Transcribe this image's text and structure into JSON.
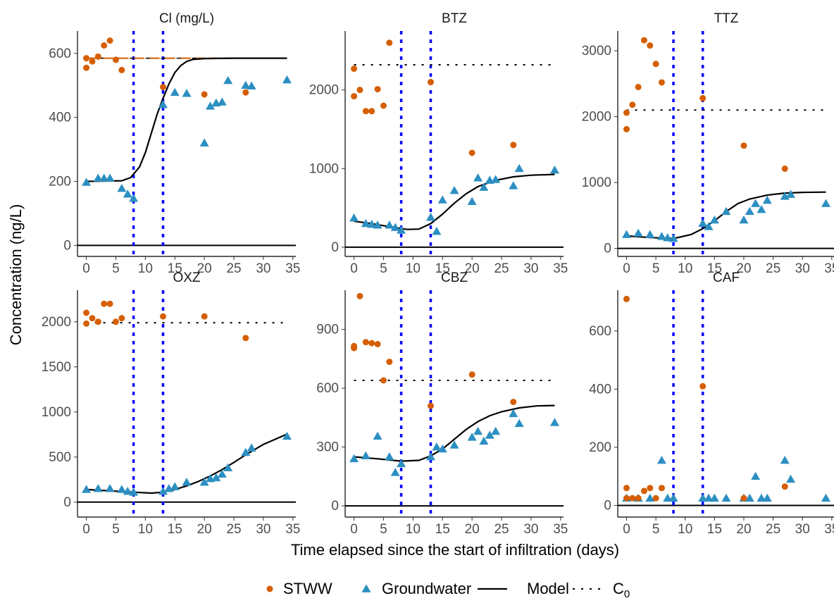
{
  "colors": {
    "stww": "#D55E00",
    "groundwater": "#2C8FC2",
    "model": "#000000",
    "vline": "#0000FF"
  },
  "chart_data": {
    "type": "scatter",
    "xlabel": "Time elapsed since the start of infiltration (days)",
    "ylabel": "Concentration (ng/L)",
    "x_ticks": [
      0,
      5,
      10,
      15,
      20,
      25,
      30,
      35
    ],
    "x_range": [
      -1.5,
      35.5
    ],
    "vertical_lines_x": [
      8,
      13
    ],
    "legend": {
      "position": "bottom",
      "items": [
        {
          "key": "stww",
          "label": "STWW",
          "symbol": "circle"
        },
        {
          "key": "groundwater",
          "label": "Groundwater",
          "symbol": "triangle"
        },
        {
          "key": "model",
          "label": "Model",
          "symbol": "line"
        },
        {
          "key": "c0",
          "label": "C",
          "sub": "0",
          "symbol": "dotted"
        }
      ]
    },
    "panels": [
      {
        "title": "Cl (mg/L)",
        "y_range": [
          -30,
          670
        ],
        "y_ticks": [
          0,
          200,
          400,
          600
        ],
        "c0": 585,
        "c0_style": "dashed",
        "stww": [
          [
            0,
            555
          ],
          [
            0,
            585
          ],
          [
            1,
            575
          ],
          [
            2,
            590
          ],
          [
            3,
            625
          ],
          [
            4,
            640
          ],
          [
            5,
            580
          ],
          [
            6,
            548
          ],
          [
            13,
            495
          ],
          [
            20,
            472
          ],
          [
            27,
            478
          ]
        ],
        "groundwater": [
          [
            0,
            197
          ],
          [
            2,
            210
          ],
          [
            3,
            210
          ],
          [
            4,
            210
          ],
          [
            6,
            178
          ],
          [
            7,
            160
          ],
          [
            8,
            147
          ],
          [
            13,
            440
          ],
          [
            15,
            478
          ],
          [
            17,
            475
          ],
          [
            20,
            320
          ],
          [
            21,
            435
          ],
          [
            22,
            445
          ],
          [
            23,
            448
          ],
          [
            24,
            515
          ],
          [
            27,
            500
          ],
          [
            28,
            498
          ],
          [
            34,
            517
          ]
        ],
        "model": [
          [
            0,
            200
          ],
          [
            6,
            202
          ],
          [
            7.5,
            212
          ],
          [
            9,
            245
          ],
          [
            10,
            290
          ],
          [
            11,
            350
          ],
          [
            12,
            410
          ],
          [
            13,
            460
          ],
          [
            14,
            505
          ],
          [
            15,
            540
          ],
          [
            16,
            562
          ],
          [
            17,
            575
          ],
          [
            18,
            581
          ],
          [
            20,
            584
          ],
          [
            25,
            585
          ],
          [
            34,
            585
          ]
        ]
      },
      {
        "title": "BTZ",
        "y_range": [
          -100,
          2750
        ],
        "y_ticks": [
          0,
          1000,
          2000
        ],
        "c0": 2320,
        "c0_style": "dotted",
        "stww": [
          [
            0,
            1920
          ],
          [
            0,
            2270
          ],
          [
            1,
            2000
          ],
          [
            2,
            1730
          ],
          [
            3,
            1730
          ],
          [
            4,
            2010
          ],
          [
            5,
            1800
          ],
          [
            6,
            2600
          ],
          [
            13,
            2100
          ],
          [
            20,
            1200
          ],
          [
            27,
            1300
          ]
        ],
        "groundwater": [
          [
            0,
            370
          ],
          [
            2,
            300
          ],
          [
            3,
            290
          ],
          [
            4,
            280
          ],
          [
            6,
            280
          ],
          [
            7,
            250
          ],
          [
            8,
            215
          ],
          [
            13,
            380
          ],
          [
            14,
            200
          ],
          [
            15,
            600
          ],
          [
            17,
            720
          ],
          [
            20,
            580
          ],
          [
            21,
            880
          ],
          [
            22,
            760
          ],
          [
            23,
            850
          ],
          [
            24,
            860
          ],
          [
            27,
            780
          ],
          [
            28,
            1000
          ],
          [
            34,
            980
          ]
        ],
        "model": [
          [
            0,
            330
          ],
          [
            3,
            300
          ],
          [
            6,
            260
          ],
          [
            9,
            225
          ],
          [
            11,
            230
          ],
          [
            13,
            300
          ],
          [
            15,
            420
          ],
          [
            17,
            560
          ],
          [
            19,
            680
          ],
          [
            21,
            770
          ],
          [
            24,
            850
          ],
          [
            27,
            895
          ],
          [
            30,
            915
          ],
          [
            34,
            925
          ]
        ]
      },
      {
        "title": "TTZ",
        "y_range": [
          -100,
          3300
        ],
        "y_ticks": [
          0,
          1000,
          2000,
          3000
        ],
        "c0": 2100,
        "c0_style": "dotted",
        "stww": [
          [
            0,
            1810
          ],
          [
            0,
            2060
          ],
          [
            1,
            2180
          ],
          [
            2,
            2450
          ],
          [
            3,
            3160
          ],
          [
            4,
            3080
          ],
          [
            5,
            2800
          ],
          [
            6,
            2520
          ],
          [
            13,
            2280
          ],
          [
            20,
            1560
          ],
          [
            27,
            1210
          ]
        ],
        "groundwater": [
          [
            0,
            210
          ],
          [
            2,
            230
          ],
          [
            4,
            210
          ],
          [
            6,
            180
          ],
          [
            7,
            160
          ],
          [
            8,
            150
          ],
          [
            13,
            380
          ],
          [
            14,
            330
          ],
          [
            15,
            430
          ],
          [
            17,
            560
          ],
          [
            20,
            430
          ],
          [
            21,
            560
          ],
          [
            22,
            680
          ],
          [
            23,
            590
          ],
          [
            24,
            730
          ],
          [
            27,
            790
          ],
          [
            28,
            820
          ],
          [
            34,
            680
          ]
        ],
        "model": [
          [
            0,
            190
          ],
          [
            4,
            165
          ],
          [
            8,
            150
          ],
          [
            11,
            210
          ],
          [
            13,
            300
          ],
          [
            15,
            420
          ],
          [
            17,
            560
          ],
          [
            19,
            680
          ],
          [
            21,
            750
          ],
          [
            24,
            810
          ],
          [
            27,
            840
          ],
          [
            30,
            850
          ],
          [
            34,
            855
          ]
        ]
      },
      {
        "title": "OXZ",
        "y_range": [
          -150,
          2350
        ],
        "y_ticks": [
          0,
          500,
          1000,
          1500,
          2000
        ],
        "c0": 1990,
        "c0_style": "dotted",
        "stww": [
          [
            0,
            1980
          ],
          [
            0,
            2100
          ],
          [
            1,
            2040
          ],
          [
            2,
            2000
          ],
          [
            3,
            2200
          ],
          [
            4,
            2200
          ],
          [
            5,
            2000
          ],
          [
            6,
            2040
          ],
          [
            13,
            2060
          ],
          [
            20,
            2060
          ],
          [
            27,
            1820
          ]
        ],
        "groundwater": [
          [
            0,
            140
          ],
          [
            2,
            150
          ],
          [
            4,
            150
          ],
          [
            6,
            140
          ],
          [
            7,
            120
          ],
          [
            8,
            110
          ],
          [
            13,
            120
          ],
          [
            14,
            150
          ],
          [
            15,
            170
          ],
          [
            17,
            220
          ],
          [
            20,
            220
          ],
          [
            21,
            260
          ],
          [
            22,
            270
          ],
          [
            23,
            310
          ],
          [
            24,
            380
          ],
          [
            27,
            550
          ],
          [
            28,
            600
          ],
          [
            34,
            730
          ]
        ],
        "model": [
          [
            0,
            140
          ],
          [
            4,
            125
          ],
          [
            8,
            110
          ],
          [
            11,
            100
          ],
          [
            13,
            110
          ],
          [
            15,
            140
          ],
          [
            17,
            180
          ],
          [
            19,
            230
          ],
          [
            21,
            290
          ],
          [
            23,
            360
          ],
          [
            25,
            440
          ],
          [
            27,
            525
          ],
          [
            30,
            640
          ],
          [
            34,
            755
          ]
        ]
      },
      {
        "title": "CBZ",
        "y_range": [
          -50,
          1100
        ],
        "y_ticks": [
          0,
          300,
          600,
          900
        ],
        "c0": 640,
        "c0_style": "dotted",
        "stww": [
          [
            0,
            805
          ],
          [
            0,
            815
          ],
          [
            1,
            1070
          ],
          [
            2,
            835
          ],
          [
            3,
            830
          ],
          [
            4,
            825
          ],
          [
            5,
            640
          ],
          [
            6,
            735
          ],
          [
            13,
            510
          ],
          [
            20,
            670
          ],
          [
            27,
            530
          ]
        ],
        "groundwater": [
          [
            0,
            240
          ],
          [
            2,
            255
          ],
          [
            4,
            355
          ],
          [
            6,
            250
          ],
          [
            7,
            170
          ],
          [
            8,
            215
          ],
          [
            13,
            250
          ],
          [
            14,
            300
          ],
          [
            15,
            290
          ],
          [
            17,
            310
          ],
          [
            20,
            350
          ],
          [
            21,
            380
          ],
          [
            22,
            330
          ],
          [
            23,
            360
          ],
          [
            24,
            380
          ],
          [
            27,
            470
          ],
          [
            28,
            420
          ],
          [
            34,
            425
          ]
        ],
        "model": [
          [
            0,
            250
          ],
          [
            4,
            240
          ],
          [
            8,
            228
          ],
          [
            11,
            232
          ],
          [
            13,
            255
          ],
          [
            15,
            290
          ],
          [
            17,
            340
          ],
          [
            19,
            390
          ],
          [
            21,
            430
          ],
          [
            23,
            460
          ],
          [
            25,
            480
          ],
          [
            28,
            500
          ],
          [
            31,
            510
          ],
          [
            34,
            512
          ]
        ]
      },
      {
        "title": "CAF",
        "y_range": [
          -35,
          740
        ],
        "y_ticks": [
          0,
          200,
          400,
          600
        ],
        "stww": [
          [
            0,
            25
          ],
          [
            0,
            60
          ],
          [
            1,
            25
          ],
          [
            2,
            25
          ],
          [
            3,
            50
          ],
          [
            4,
            60
          ],
          [
            5,
            25
          ],
          [
            6,
            60
          ],
          [
            13,
            410
          ],
          [
            20,
            25
          ],
          [
            27,
            65
          ]
        ],
        "groundwater": [
          [
            0,
            25
          ],
          [
            2,
            25
          ],
          [
            4,
            25
          ],
          [
            6,
            155
          ],
          [
            7,
            25
          ],
          [
            8,
            25
          ],
          [
            13,
            25
          ],
          [
            14,
            25
          ],
          [
            15,
            25
          ],
          [
            17,
            25
          ],
          [
            20,
            25
          ],
          [
            21,
            25
          ],
          [
            22,
            100
          ],
          [
            23,
            25
          ],
          [
            24,
            25
          ],
          [
            27,
            155
          ],
          [
            28,
            90
          ],
          [
            34,
            25
          ]
        ],
        "stww_top": [
          [
            0,
            710
          ]
        ]
      }
    ]
  }
}
